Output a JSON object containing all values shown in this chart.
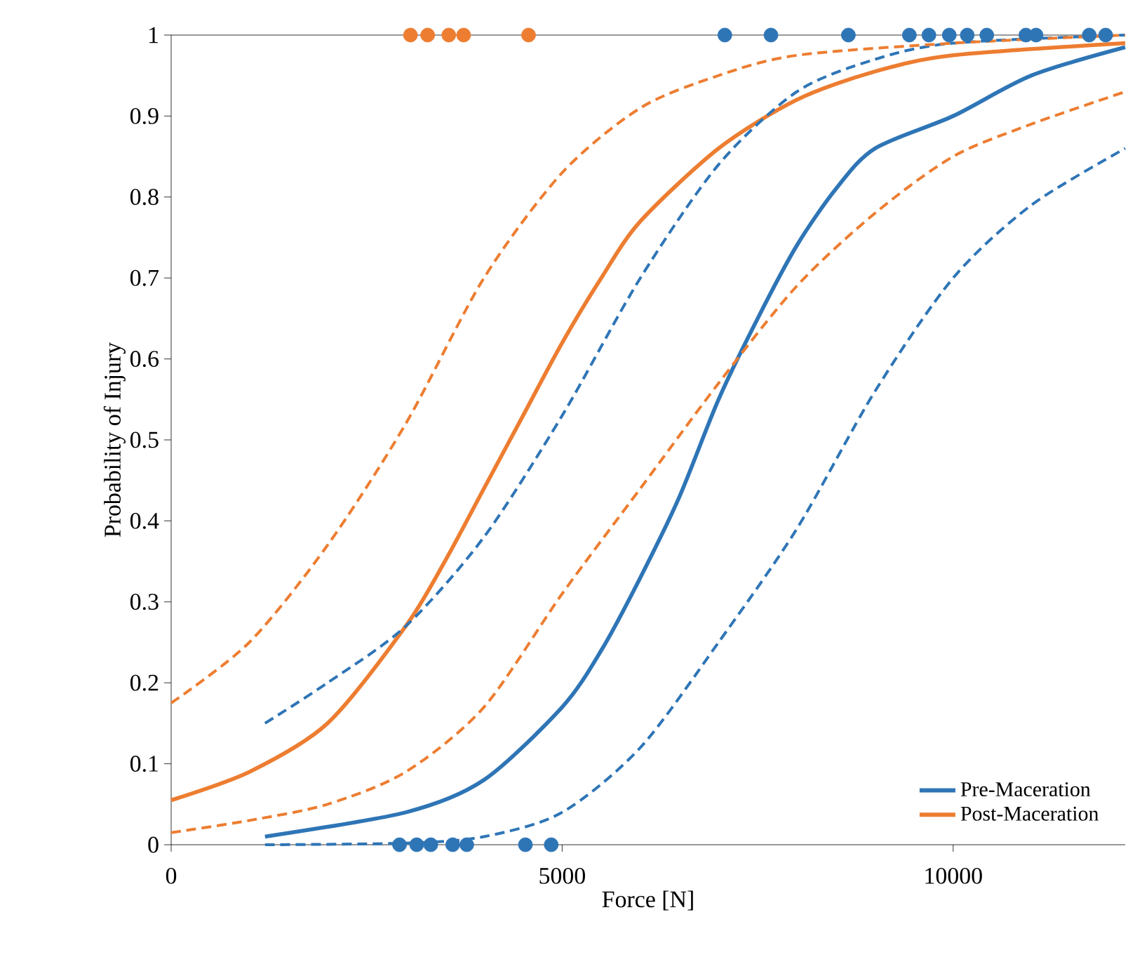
{
  "chart_data": {
    "type": "line",
    "xlabel": "Force [N]",
    "ylabel": "Probability of Injury",
    "xlim": [
      0,
      12200
    ],
    "xticks": [
      0,
      5000,
      10000
    ],
    "ylim": [
      0,
      1
    ],
    "yticks": [
      0,
      0.1,
      0.2,
      0.3,
      0.4,
      0.5,
      0.6,
      0.7,
      0.8,
      0.9,
      1
    ],
    "grid": false,
    "legend": "bottom right",
    "series": [
      {
        "name": "Pre-Maceration",
        "color": "#2e75b6",
        "line_style": "solid",
        "marker": "none",
        "x": [
          1200,
          3000,
          4000,
          5000,
          5500,
          6000,
          6500,
          7000,
          7500,
          8000,
          8500,
          9000,
          10000,
          11000,
          12200
        ],
        "values": [
          0.01,
          0.04,
          0.08,
          0.17,
          0.24,
          0.33,
          0.43,
          0.55,
          0.65,
          0.74,
          0.81,
          0.86,
          0.9,
          0.95,
          0.985
        ]
      },
      {
        "name": "Post-Maceration",
        "color": "#ed7d31",
        "line_style": "solid",
        "marker": "none",
        "x": [
          0,
          1000,
          2000,
          3000,
          3500,
          4000,
          4500,
          5000,
          5500,
          6000,
          7000,
          8000,
          9000,
          10000,
          12200
        ],
        "values": [
          0.055,
          0.09,
          0.15,
          0.27,
          0.35,
          0.44,
          0.53,
          0.62,
          0.7,
          0.77,
          0.86,
          0.92,
          0.955,
          0.975,
          0.99
        ]
      },
      {
        "color": "#2e75b6",
        "line_style": "dashed",
        "marker": "none",
        "x": [
          1200,
          2000,
          3000,
          4000,
          5000,
          6000,
          7000,
          8000,
          9000,
          10000,
          12200
        ],
        "values": [
          0.15,
          0.2,
          0.27,
          0.38,
          0.53,
          0.7,
          0.84,
          0.93,
          0.97,
          0.99,
          1
        ]
      },
      {
        "color": "#2e75b6",
        "line_style": "dashed",
        "marker": "none",
        "x": [
          1200,
          3000,
          4000,
          5000,
          6000,
          7000,
          8000,
          9000,
          10000,
          11000,
          12200
        ],
        "values": [
          0,
          0.002,
          0.01,
          0.04,
          0.12,
          0.25,
          0.39,
          0.56,
          0.7,
          0.79,
          0.86
        ]
      },
      {
        "color": "#ed7d31",
        "line_style": "dashed",
        "marker": "none",
        "x": [
          0,
          1000,
          2000,
          3000,
          4000,
          5000,
          6000,
          7000,
          8000,
          10000,
          12200
        ],
        "values": [
          0.175,
          0.25,
          0.37,
          0.52,
          0.7,
          0.83,
          0.91,
          0.95,
          0.975,
          0.99,
          1
        ]
      },
      {
        "color": "#ed7d31",
        "line_style": "dashed",
        "marker": "none",
        "x": [
          0,
          1000,
          2000,
          3000,
          4000,
          5000,
          6000,
          7000,
          8000,
          9000,
          10000,
          11000,
          12200
        ],
        "values": [
          0.015,
          0.03,
          0.05,
          0.09,
          0.17,
          0.31,
          0.44,
          0.57,
          0.69,
          0.78,
          0.85,
          0.89,
          0.93
        ]
      },
      {
        "type": "scatter",
        "color": "#ed7d31",
        "marker": "circle",
        "x": [
          3060,
          3280,
          3550,
          3740,
          4570
        ],
        "values": [
          1,
          1,
          1,
          1,
          1
        ]
      },
      {
        "type": "scatter",
        "color": "#2e75b6",
        "marker": "circle",
        "x": [
          7080,
          7670,
          8660,
          9440,
          9690,
          9950,
          10180,
          10430,
          10930,
          11060,
          11740,
          11950,
          2920,
          3140,
          3320,
          3600,
          3780,
          4530,
          4860
        ],
        "values": [
          1,
          1,
          1,
          1,
          1,
          1,
          1,
          1,
          1,
          1,
          1,
          1,
          0,
          0,
          0,
          0,
          0,
          0,
          0
        ]
      }
    ]
  }
}
